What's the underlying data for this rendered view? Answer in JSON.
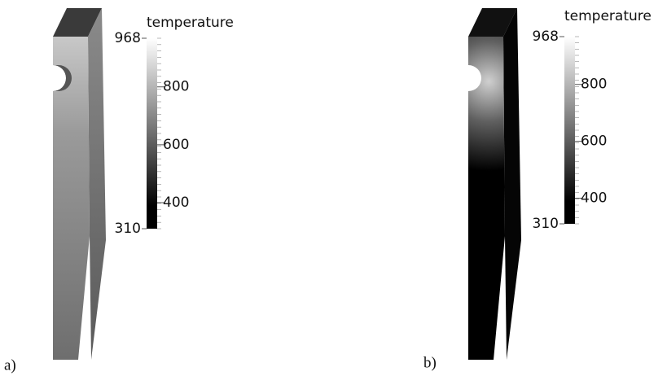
{
  "panels": [
    {
      "label": "a)",
      "colorbar": {
        "title": "temperature",
        "min": 310,
        "max": 968,
        "ticks": [
          400,
          600,
          800
        ]
      }
    },
    {
      "label": "b)",
      "colorbar": {
        "title": "temperature",
        "min": 310,
        "max": 968,
        "ticks": [
          400,
          600,
          800
        ]
      }
    }
  ]
}
